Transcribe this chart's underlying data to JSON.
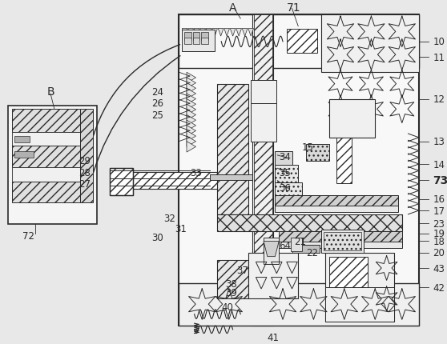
{
  "bg_color": "#e8e8e8",
  "line_color": "#2a2a2a",
  "white": "#ffffff",
  "gray_light": "#d0d0d0",
  "gray_mid": "#b0b0b0"
}
